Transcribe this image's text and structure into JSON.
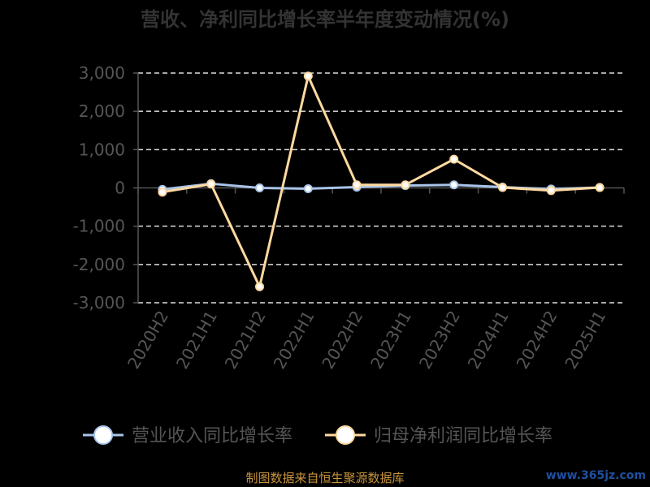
{
  "chart_data": {
    "type": "line",
    "title": "营收、净利同比增长率半年度变动情况(%)",
    "categories": [
      "2020H2",
      "2021H1",
      "2021H2",
      "2022H1",
      "2022H2",
      "2023H1",
      "2023H2",
      "2024H1",
      "2024H2",
      "2025H1"
    ],
    "series": [
      {
        "name": "营业收入同比增长率",
        "color": "#a8c4e8",
        "values": [
          -40,
          110,
          0,
          -20,
          20,
          60,
          80,
          20,
          -30,
          10
        ]
      },
      {
        "name": "归母净利润同比增长率",
        "color": "#ffd9a0",
        "values": [
          -110,
          100,
          -2580,
          2920,
          80,
          80,
          750,
          10,
          -70,
          10
        ]
      }
    ],
    "ylim": [
      -3000,
      3000
    ],
    "yticks": [
      -3000,
      -2000,
      -1000,
      0,
      1000,
      2000,
      3000
    ],
    "ytick_labels": [
      "-3,000",
      "-2,000",
      "-1,000",
      "0",
      "1,000",
      "2,000",
      "3,000"
    ],
    "grid": true,
    "legend": "bottom",
    "xlabel": "",
    "ylabel": ""
  },
  "footer": {
    "source": "制图数据来自恒生聚源数据库",
    "watermark": "www.365jz.com"
  }
}
